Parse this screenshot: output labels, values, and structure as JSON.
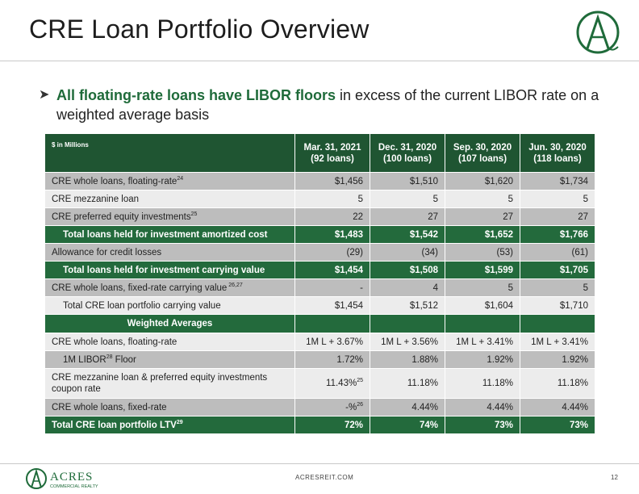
{
  "header": {
    "title": "CRE Loan Portfolio Overview"
  },
  "bullet": {
    "bold": "All floating-rate loans have LIBOR floors",
    "rest": " in excess of the current LIBOR rate on a weighted average basis"
  },
  "table": {
    "unit_label": "$ in Millions",
    "columns": [
      {
        "date": "Mar. 31, 2021",
        "loans": "(92 loans)"
      },
      {
        "date": "Dec. 31, 2020",
        "loans": "(100 loans)"
      },
      {
        "date": "Sep. 30, 2020",
        "loans": "(107 loans)"
      },
      {
        "date": "Jun. 30, 2020",
        "loans": "(118 loans)"
      }
    ],
    "rows": [
      {
        "label": "CRE whole loans, floating-rate",
        "sup": "24",
        "values": [
          "$1,456",
          "$1,510",
          "$1,620",
          "$1,734"
        ]
      },
      {
        "label": "CRE mezzanine loan",
        "sup": "",
        "values": [
          "5",
          "5",
          "5",
          "5"
        ]
      },
      {
        "label": "CRE preferred equity investments",
        "sup": "25",
        "values": [
          "22",
          "27",
          "27",
          "27"
        ]
      },
      {
        "label": "Total loans held for investment amortized cost",
        "sup": "",
        "values": [
          "$1,483",
          "$1,542",
          "$1,652",
          "$1,766"
        ]
      },
      {
        "label": "Allowance for credit losses",
        "sup": "",
        "values": [
          "(29)",
          "(34)",
          "(53)",
          "(61)"
        ]
      },
      {
        "label": "Total loans held for investment carrying value",
        "sup": "",
        "values": [
          "$1,454",
          "$1,508",
          "$1,599",
          "$1,705"
        ]
      },
      {
        "label": "CRE whole loans, fixed-rate carrying value",
        "sup": " 26,27",
        "values": [
          "-",
          "4",
          "5",
          "5"
        ]
      },
      {
        "label": "Total CRE loan portfolio carrying value",
        "sup": "",
        "values": [
          "$1,454",
          "$1,512",
          "$1,604",
          "$1,710"
        ]
      },
      {
        "label": "Weighted Averages",
        "sup": "",
        "values": [
          "",
          "",
          "",
          ""
        ]
      },
      {
        "label": "CRE whole loans, floating-rate",
        "sup": "",
        "values": [
          "1M L + 3.67%",
          "1M L + 3.56%",
          "1M L + 3.41%",
          "1M L + 3.41%"
        ]
      },
      {
        "label": "1M LIBOR",
        "sup": "28",
        "label_after": " Floor",
        "values": [
          "1.72%",
          "1.88%",
          "1.92%",
          "1.92%"
        ]
      },
      {
        "label": "CRE mezzanine loan & preferred equity investments coupon rate",
        "sup": "",
        "values": [
          "11.43%",
          "11.18%",
          "11.18%",
          "11.18%"
        ],
        "first_sup": "25"
      },
      {
        "label": "CRE whole loans, fixed-rate",
        "sup": "",
        "values": [
          "-%",
          "4.44%",
          "4.44%",
          "4.44%"
        ],
        "first_sup": "26"
      },
      {
        "label": "Total CRE loan portfolio LTV",
        "sup": "29",
        "values": [
          "72%",
          "74%",
          "73%",
          "73%"
        ]
      }
    ]
  },
  "footer": {
    "logo_word": "ACRES",
    "logo_sub": "COMMERCIAL REALTY",
    "url": "ACRESREIT.COM",
    "page": "12"
  },
  "colors": {
    "dark_green": "#1f5532",
    "row_green": "#236a3c",
    "accent_text": "#1f6b3a"
  },
  "icons": [
    "acres-logo-icon",
    "arrow-bullet-icon"
  ]
}
